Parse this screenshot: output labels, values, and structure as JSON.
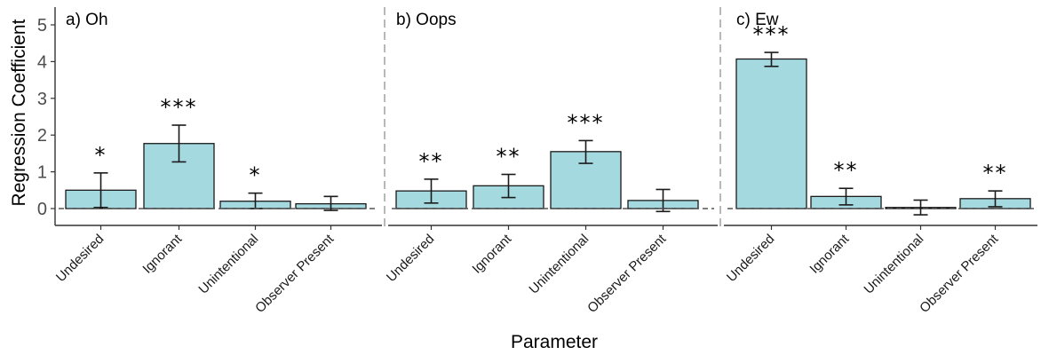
{
  "chart_data": {
    "type": "bar",
    "ylabel": "Regression Coefficient",
    "xlabel": "Parameter",
    "ylim": [
      -0.5,
      5.2
    ],
    "yticks": [
      0,
      1,
      2,
      3,
      4,
      5
    ],
    "bar_color": "#a4d9e0",
    "bar_edge_color": "#1a1a1a",
    "divider_color": "#999999",
    "panels": [
      {
        "title": "a) Oh",
        "categories": [
          "Undesired",
          "Ignorant",
          "Unintentional",
          "Observer Present"
        ],
        "values": [
          0.5,
          1.77,
          0.2,
          0.13
        ],
        "err_low": [
          0.03,
          1.27,
          0.0,
          -0.05
        ],
        "err_high": [
          0.97,
          2.27,
          0.42,
          0.33
        ],
        "significance": [
          "*",
          "***",
          "*",
          ""
        ]
      },
      {
        "title": "b) Oops",
        "categories": [
          "Undesired",
          "Ignorant",
          "Unintentional",
          "Observer Present"
        ],
        "values": [
          0.48,
          0.62,
          1.55,
          0.22
        ],
        "err_low": [
          0.15,
          0.3,
          1.23,
          -0.08
        ],
        "err_high": [
          0.8,
          0.93,
          1.85,
          0.52
        ],
        "significance": [
          "**",
          "**",
          "***",
          ""
        ]
      },
      {
        "title": "c) Ew",
        "categories": [
          "Undesired",
          "Ignorant",
          "Unintentional",
          "Observer Present"
        ],
        "values": [
          4.07,
          0.33,
          0.03,
          0.27
        ],
        "err_low": [
          3.87,
          0.1,
          -0.17,
          0.05
        ],
        "err_high": [
          4.25,
          0.55,
          0.23,
          0.48
        ],
        "significance": [
          "***",
          "**",
          "",
          "**"
        ]
      }
    ]
  }
}
